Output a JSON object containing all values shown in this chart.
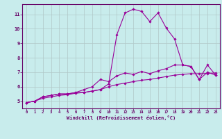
{
  "xlabel": "Windchill (Refroidissement éolien,°C)",
  "bg_color": "#c8ecec",
  "line_color": "#990099",
  "grid_color": "#b0c8c8",
  "spine_color": "#660066",
  "tick_color": "#660066",
  "xlim": [
    -0.5,
    23.5
  ],
  "ylim": [
    4.5,
    11.7
  ],
  "yticks": [
    5,
    6,
    7,
    8,
    9,
    10,
    11
  ],
  "xticks": [
    0,
    1,
    2,
    3,
    4,
    5,
    6,
    7,
    8,
    9,
    10,
    11,
    12,
    13,
    14,
    15,
    16,
    17,
    18,
    19,
    20,
    21,
    22,
    23
  ],
  "line1_x": [
    0,
    1,
    2,
    3,
    4,
    5,
    6,
    7,
    8,
    9,
    10,
    11,
    12,
    13,
    14,
    15,
    16,
    17,
    18,
    19,
    20,
    21,
    22,
    23
  ],
  "line1_y": [
    4.9,
    5.0,
    5.3,
    5.4,
    5.5,
    5.5,
    5.6,
    5.6,
    5.7,
    5.8,
    6.2,
    9.6,
    11.1,
    11.35,
    11.2,
    10.5,
    11.1,
    10.05,
    9.3,
    7.5,
    7.4,
    6.5,
    7.5,
    6.8
  ],
  "line2_x": [
    0,
    1,
    2,
    3,
    4,
    5,
    6,
    7,
    8,
    9,
    10,
    11,
    12,
    13,
    14,
    15,
    16,
    17,
    18,
    19,
    20,
    21,
    22,
    23
  ],
  "line2_y": [
    4.9,
    5.0,
    5.3,
    5.4,
    5.5,
    5.5,
    5.6,
    5.8,
    6.0,
    6.5,
    6.35,
    6.75,
    6.95,
    6.85,
    7.05,
    6.9,
    7.1,
    7.25,
    7.5,
    7.5,
    7.4,
    6.5,
    7.0,
    6.8
  ],
  "line3_x": [
    0,
    1,
    2,
    3,
    4,
    5,
    6,
    7,
    8,
    9,
    10,
    11,
    12,
    13,
    14,
    15,
    16,
    17,
    18,
    19,
    20,
    21,
    22,
    23
  ],
  "line3_y": [
    4.9,
    5.0,
    5.2,
    5.3,
    5.4,
    5.45,
    5.55,
    5.6,
    5.7,
    5.8,
    6.0,
    6.15,
    6.25,
    6.35,
    6.45,
    6.5,
    6.6,
    6.7,
    6.8,
    6.85,
    6.9,
    6.9,
    6.92,
    6.95
  ]
}
